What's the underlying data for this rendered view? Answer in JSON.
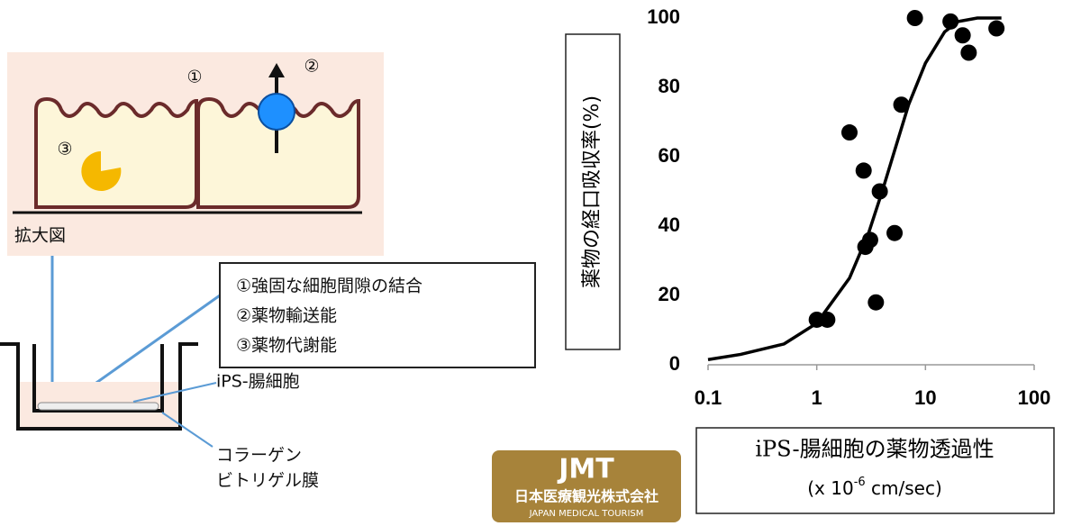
{
  "chart_data": {
    "type": "scatter",
    "y_label": "薬物の経口吸収率(%)",
    "x_label": "iPS-腸細胞の薬物透過性",
    "x_label_unit": [
      "(x 10",
      "-6",
      " cm/sec)"
    ],
    "log_x": true,
    "xlim": [
      0.1,
      100
    ],
    "xticks": [
      0.1,
      1,
      10,
      100
    ],
    "ylim": [
      0,
      100
    ],
    "yticks": [
      0,
      20,
      40,
      60,
      80,
      100
    ],
    "series": [
      {
        "type": "scatter",
        "color": "#000000",
        "x": [
          1.0,
          1.25,
          2.0,
          2.7,
          2.8,
          3.1,
          3.5,
          3.8,
          5.2,
          6.0,
          8.0,
          17,
          22,
          25,
          45
        ],
        "values": [
          13,
          13,
          67,
          56,
          34,
          36,
          18,
          50,
          38,
          75,
          100,
          99,
          95,
          90,
          97
        ]
      },
      {
        "type": "line",
        "color": "#000000",
        "x": [
          0.1,
          0.2,
          0.5,
          1,
          2,
          3,
          4,
          5,
          7,
          10,
          15,
          20,
          30,
          50
        ],
        "values": [
          1.5,
          3,
          6,
          12,
          25,
          38,
          50,
          60,
          75,
          87,
          96,
          99,
          100,
          100
        ]
      }
    ]
  },
  "diagram": {
    "markers": [
      "①",
      "②",
      "③"
    ],
    "zoom_label": "拡大図",
    "features": [
      "①強固な細胞間隙の結合",
      "②薬物輸送能",
      "③薬物代謝能"
    ],
    "cell_label": "iPS-腸細胞",
    "membrane_label": [
      "コラーゲン",
      "ビトリゲル膜"
    ]
  },
  "logo": {
    "mark": "JMT",
    "company": "日本医療観光株式会社",
    "tagline": "JAPAN MEDICAL TOURISM"
  }
}
